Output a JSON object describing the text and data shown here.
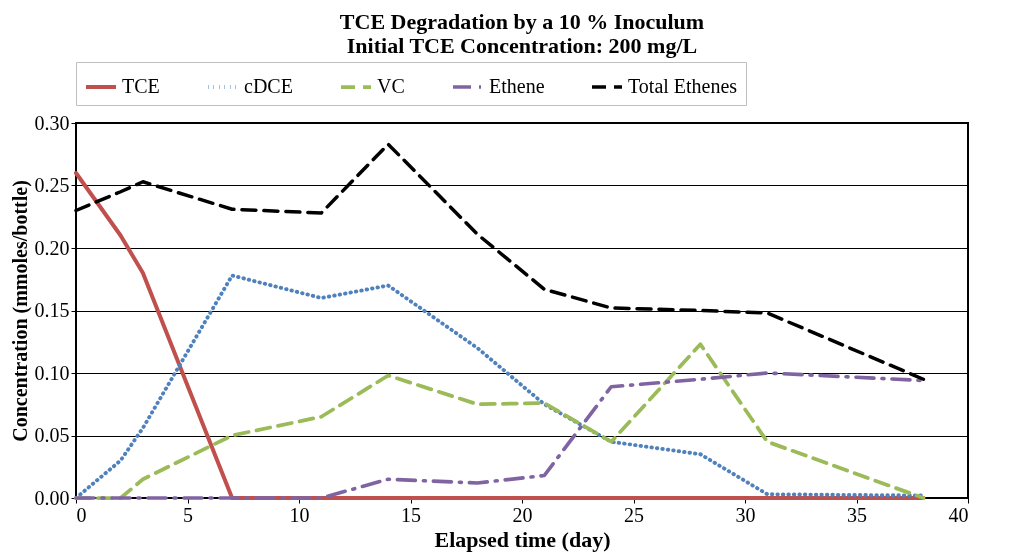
{
  "chart_data": {
    "type": "line",
    "title": [
      "TCE Degradation by a 10 % Inoculum",
      "Initial TCE Concentration: 200 mg/L"
    ],
    "xlabel": "Elapsed time (day)",
    "ylabel": "Concentration (mmoles/bottle)",
    "x": [
      0,
      2,
      3,
      7,
      11,
      14,
      18,
      21,
      24,
      28,
      31,
      38
    ],
    "series": [
      {
        "name": "TCE",
        "color": "#c0504d",
        "line_style": "solid",
        "values": [
          0.26,
          0.21,
          0.18,
          0,
          0,
          0,
          0,
          0,
          0,
          0,
          0,
          0
        ]
      },
      {
        "name": "cDCE",
        "color": "#4f81bd",
        "line_style": "dotted",
        "values": [
          0,
          0.03,
          0.056,
          0.178,
          0.16,
          0.17,
          0.12,
          0.075,
          0.045,
          0.035,
          0.003,
          0.002
        ]
      },
      {
        "name": "VC",
        "color": "#9bbb59",
        "line_style": "dashed",
        "values": [
          0,
          0,
          0.015,
          0.05,
          0.065,
          0.098,
          0.075,
          0.076,
          0.045,
          0.123,
          0.045,
          0
        ]
      },
      {
        "name": "Ethene",
        "color": "#8064a2",
        "line_style": "dashdot",
        "values": [
          0,
          0,
          0,
          0,
          0,
          0.015,
          0.012,
          0.018,
          0.089,
          0.095,
          0.1,
          0.094
        ]
      },
      {
        "name": "Total Ethenes",
        "color": "#000000",
        "line_style": "dashed",
        "values": [
          0.23,
          0.245,
          0.253,
          0.231,
          0.228,
          0.283,
          0.211,
          0.167,
          0.152,
          0.15,
          0.148,
          0.095
        ]
      }
    ],
    "xlim": [
      0,
      40
    ],
    "xticks": [
      0,
      5,
      10,
      15,
      20,
      25,
      30,
      35,
      40
    ],
    "ylim": [
      0,
      0.3
    ],
    "yticks": [
      {
        "value": 0,
        "label": "0.00"
      },
      {
        "value": 0.05,
        "label": "0.05"
      },
      {
        "value": 0.1,
        "label": "0.10"
      },
      {
        "value": 0.15,
        "label": "0.15"
      },
      {
        "value": 0.2,
        "label": "0.20"
      },
      {
        "value": 0.25,
        "label": "0.25"
      },
      {
        "value": 0.3,
        "label": "0.30"
      }
    ],
    "grid": "y",
    "legend": "top",
    "marker": "none"
  }
}
